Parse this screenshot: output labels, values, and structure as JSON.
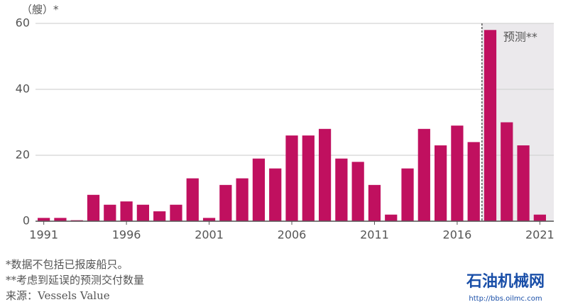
{
  "chart_data": {
    "type": "bar",
    "y_label": "（艘）*",
    "x": [
      1991,
      1992,
      1993,
      1994,
      1995,
      1996,
      1997,
      1998,
      1999,
      2000,
      2001,
      2002,
      2003,
      2004,
      2005,
      2006,
      2007,
      2008,
      2009,
      2010,
      2011,
      2012,
      2013,
      2014,
      2015,
      2016,
      2017,
      2018,
      2019,
      2020,
      2021
    ],
    "values": [
      1,
      1,
      0.3,
      8,
      5,
      6,
      5,
      3,
      5,
      13,
      1,
      11,
      13,
      19,
      16,
      26,
      26,
      28,
      19,
      18,
      11,
      2,
      16,
      28,
      23,
      29,
      24,
      58,
      30,
      23,
      2
    ],
    "color": "#c0105f",
    "xlim": [
      1990.5,
      2021.5
    ],
    "xticks": [
      1991,
      1996,
      2001,
      2006,
      2011,
      2016,
      2021
    ],
    "ylim": [
      0,
      60
    ],
    "yticks": [
      0,
      20,
      40,
      60
    ],
    "grid": true,
    "forecast": {
      "label": "预测**",
      "from": 2017.5
    },
    "notes": [
      "*数据不包括已报废船只。",
      "**考虑到延误的预测交付数量",
      "来源：Vessels Value"
    ],
    "watermark": {
      "title": "石油机械网",
      "url": "http://bbs.oilmc.com"
    }
  }
}
